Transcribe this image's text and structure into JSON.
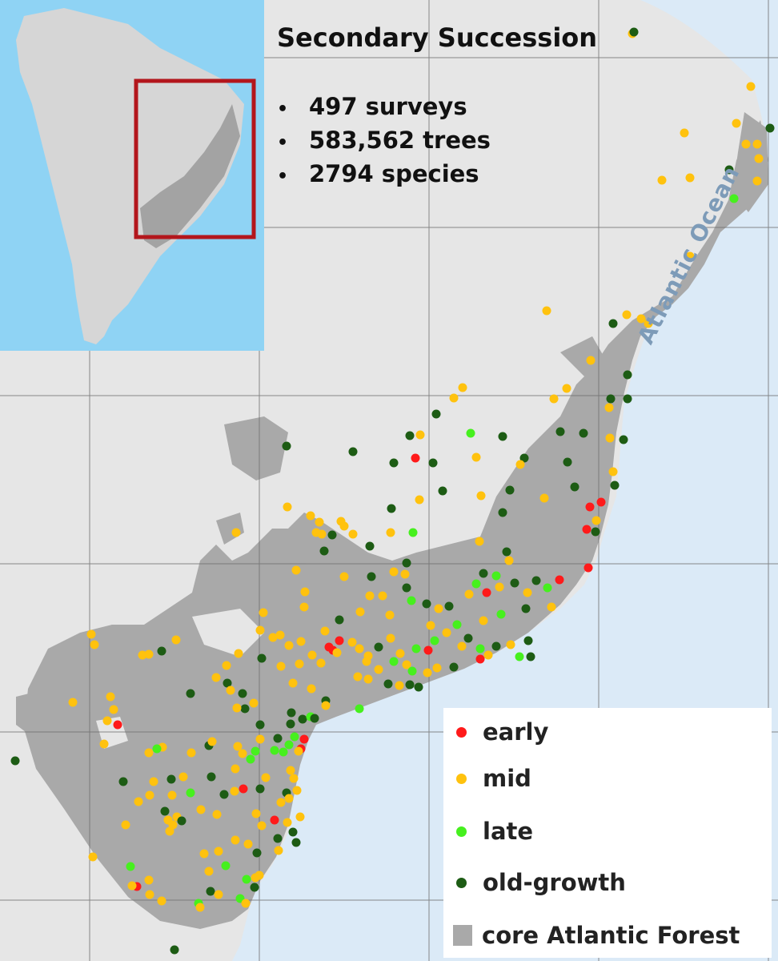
{
  "title": "Secondary Succession",
  "stats": [
    "497 surveys",
    "583,562 trees",
    "2794 species"
  ],
  "bullet": "•",
  "ocean_label": "Atlantic Ocean",
  "legend": {
    "items": [
      {
        "label": "early",
        "color": "#ff1a1a",
        "kind": "dot"
      },
      {
        "label": "mid",
        "color": "#ffc20e",
        "kind": "dot"
      },
      {
        "label": "late",
        "color": "#46f01e",
        "kind": "dot"
      },
      {
        "label": "old-growth",
        "color": "#1d5c14",
        "kind": "dot"
      },
      {
        "label": "core Atlantic Forest",
        "color": "#a9a9a9",
        "kind": "swatch"
      }
    ]
  },
  "colors": {
    "land": "#e6e6e6",
    "ocean": "#dbeaf7",
    "forest": "#a9a9a9",
    "inset_ocean": "#8fd3f4",
    "inset_land": "#d6d6d6",
    "inset_box": "#b3161c",
    "grid": "#6e6e6e"
  },
  "inset": {
    "name": "South America overview map"
  }
}
